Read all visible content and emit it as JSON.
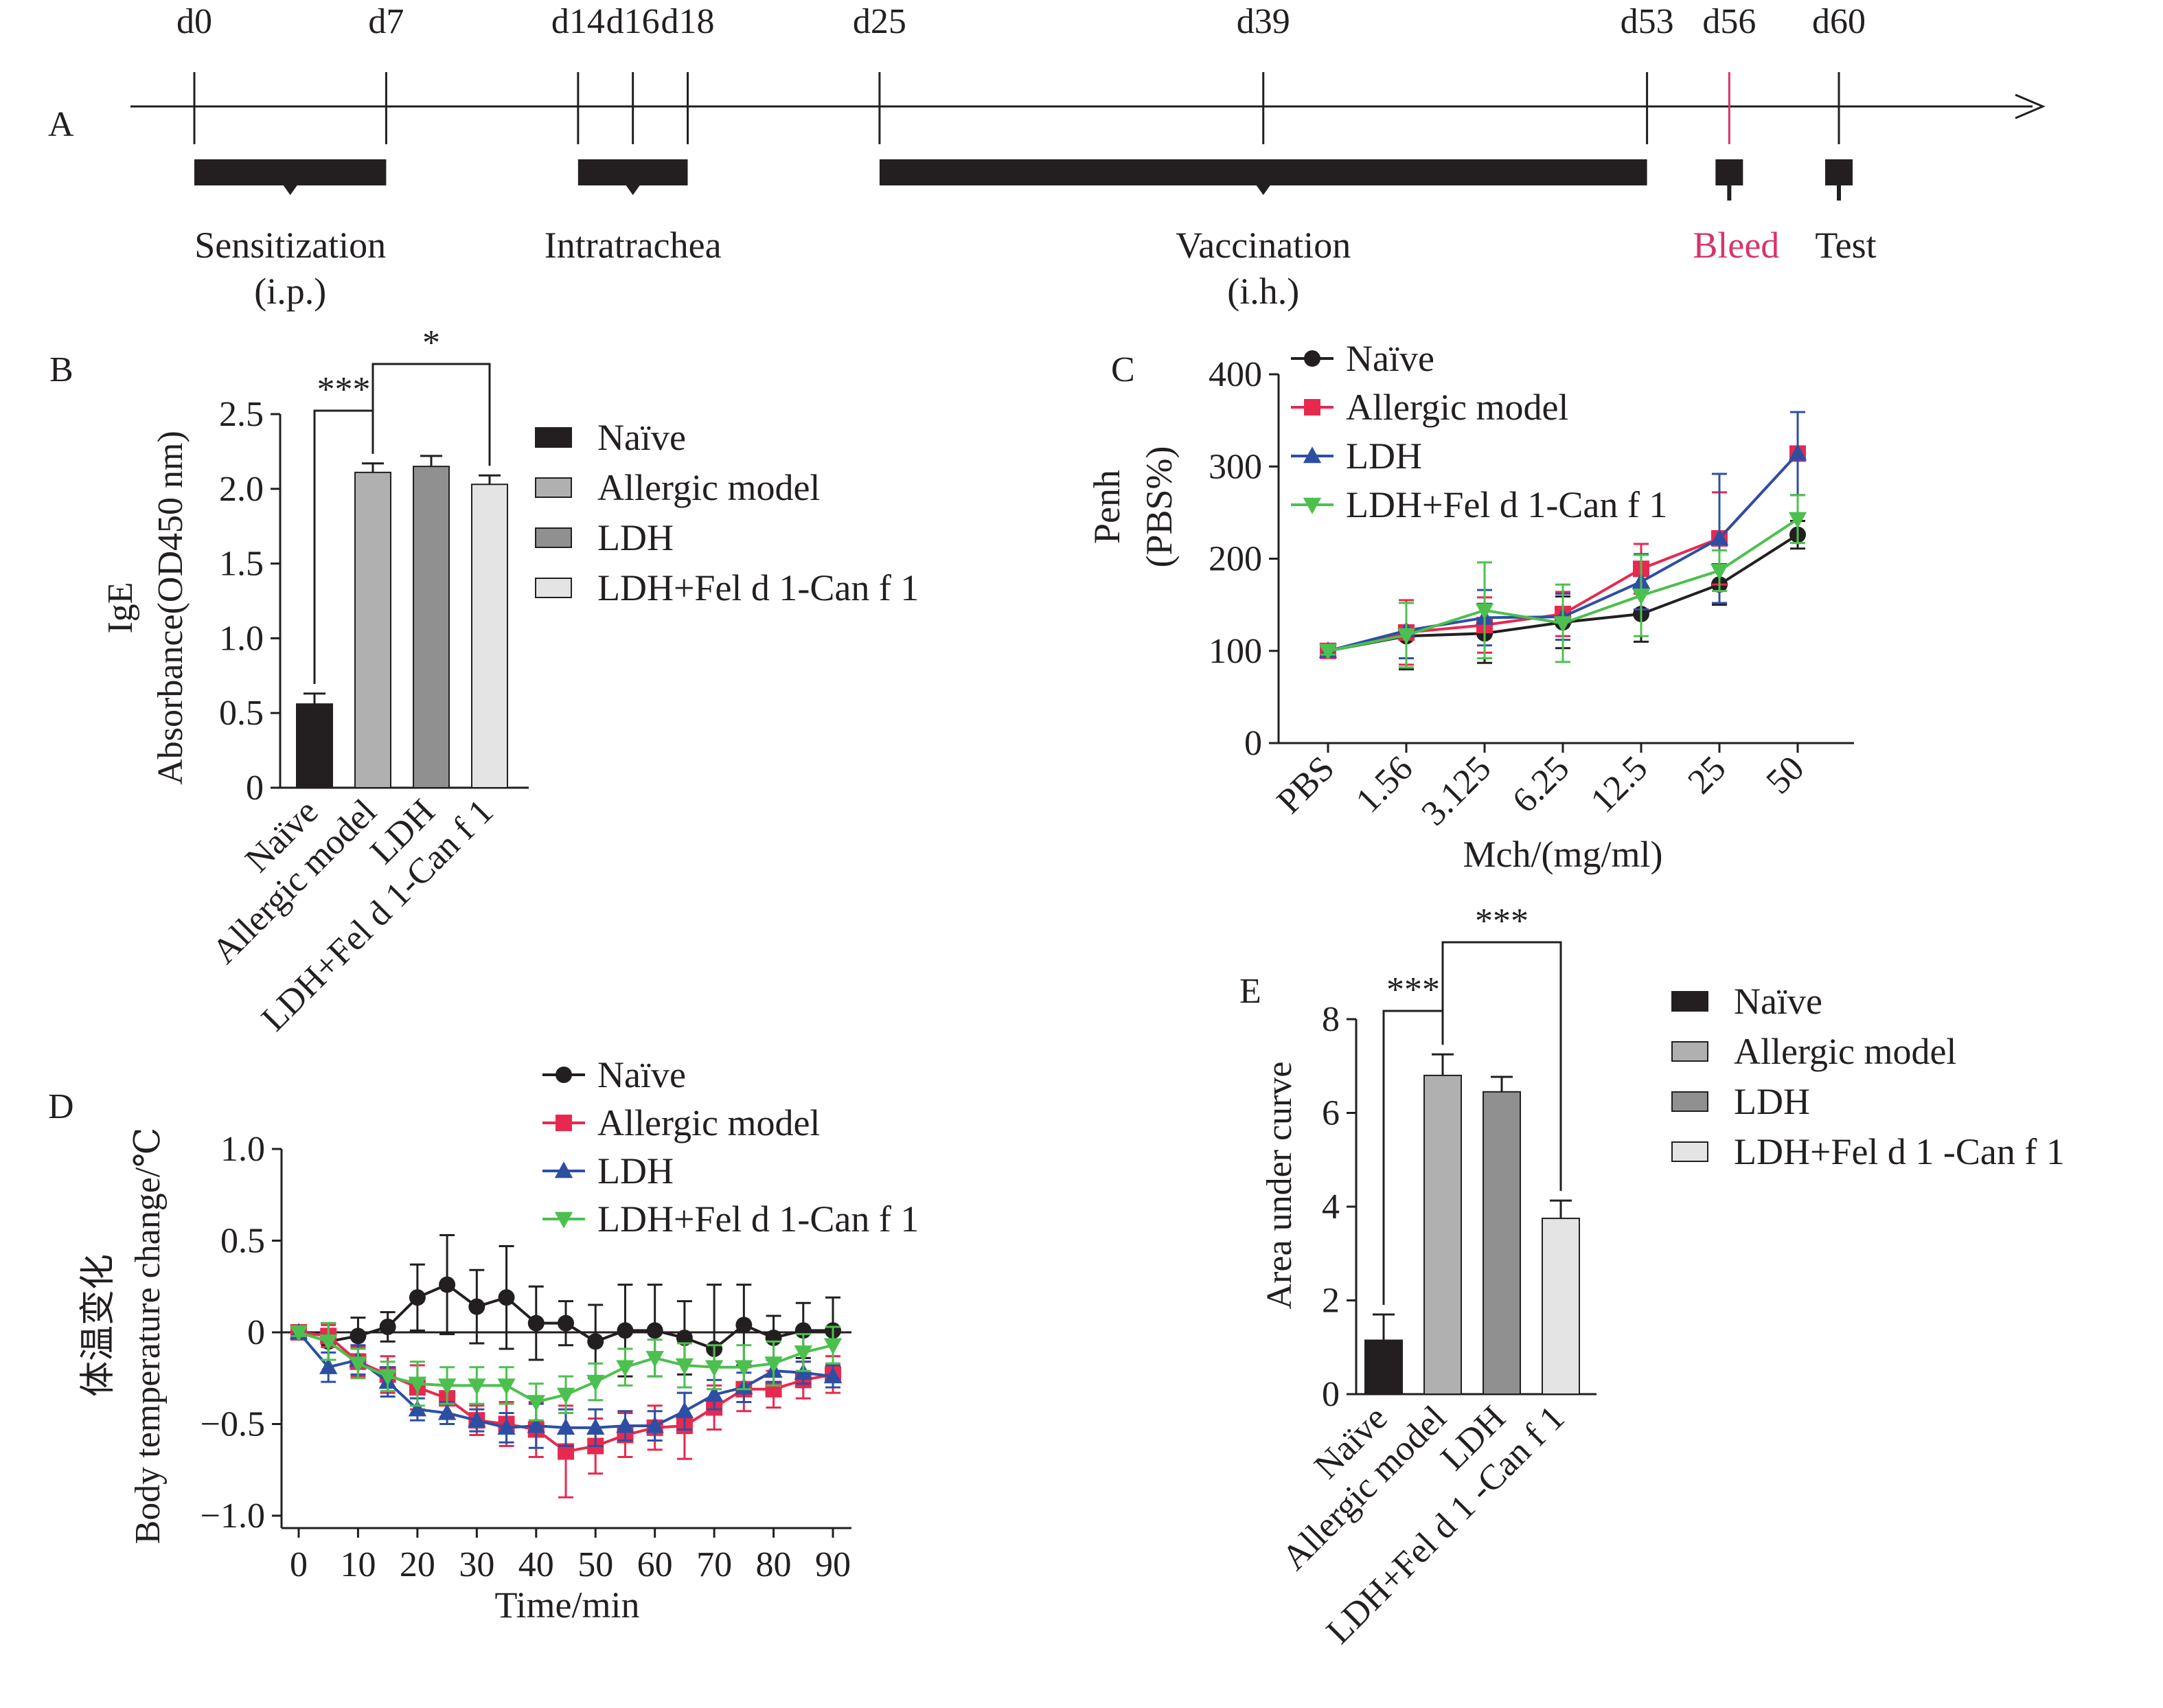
{
  "colors": {
    "ink": "#231f20",
    "naive": "#231f20",
    "allergic": "#e8294f",
    "ldh": "#2d4fa3",
    "vaccine": "#4cc04f",
    "bleed": "#d6346a",
    "bar_naive": "#231f20",
    "bar_allergic": "#b0b0b0",
    "bar_ldh": "#909090",
    "bar_vaccine": "#e4e4e4"
  },
  "panelA": {
    "label": "A",
    "days": [
      {
        "label": "d0",
        "day": 0
      },
      {
        "label": "d7",
        "day": 7
      },
      {
        "label": "d14",
        "day": 14
      },
      {
        "label": "d16",
        "day": 16
      },
      {
        "label": "d18",
        "day": 18
      },
      {
        "label": "d25",
        "day": 25
      },
      {
        "label": "d39",
        "day": 39
      },
      {
        "label": "d53",
        "day": 53
      },
      {
        "label": "d56",
        "day": 56
      },
      {
        "label": "d60",
        "day": 60
      }
    ],
    "events": [
      {
        "line1": "Sensitization",
        "line2": "(i.p.)",
        "start": 0,
        "end": 7
      },
      {
        "line1": "Intratrachea",
        "line2": "",
        "start": 14,
        "end": 18
      },
      {
        "line1": "Vaccination",
        "line2": "(i.h.)",
        "start": 25,
        "end": 53
      },
      {
        "line1": "Bleed",
        "line2": "",
        "start": 56,
        "end": 56
      },
      {
        "line1": "Test",
        "line2": "",
        "start": 60,
        "end": 60
      }
    ]
  },
  "chart_data": [
    {
      "panel": "B",
      "type": "bar",
      "ylabel_line1": "IgE",
      "ylabel_line2": "Absorbance(OD450 nm)",
      "ylim": [
        0,
        2.5
      ],
      "yticks": [
        "0",
        "0.5",
        "1.0",
        "1.5",
        "2.0",
        "2.5"
      ],
      "categories": [
        "Naïve",
        "Allergic model",
        "LDH",
        "LDH+Fel d 1-Can f 1"
      ],
      "values": [
        0.56,
        2.11,
        2.15,
        2.03
      ],
      "errors": [
        0.07,
        0.06,
        0.07,
        0.06
      ],
      "legend": [
        "Naïve",
        "Allergic model",
        "LDH",
        "LDH+Fel d 1-Can f 1"
      ],
      "significance": [
        {
          "from": 0,
          "to": 1,
          "label": "***"
        },
        {
          "from": 1,
          "to": 3,
          "label": "*"
        }
      ]
    },
    {
      "panel": "C",
      "type": "line",
      "ylabel_line1": "Penh",
      "ylabel_line2": "(PBS%)",
      "xlabel": "Mch/(mg/ml)",
      "ylim": [
        0,
        400
      ],
      "yticks": [
        "0",
        "100",
        "200",
        "300",
        "400"
      ],
      "categories": [
        "PBS",
        "1.56",
        "3.125",
        "6.25",
        "12.5",
        "25",
        "50"
      ],
      "series": [
        {
          "name": "Naïve",
          "marker": "circle",
          "values": [
            100,
            116,
            119,
            131,
            140,
            172,
            226
          ],
          "errors": [
            4,
            36,
            32,
            28,
            30,
            22,
            15
          ]
        },
        {
          "name": "Allergic model",
          "marker": "square",
          "values": [
            100,
            120,
            128,
            140,
            189,
            222,
            314
          ],
          "errors": [
            4,
            35,
            30,
            24,
            27,
            50,
            45
          ]
        },
        {
          "name": "LDH",
          "marker": "triangle-up",
          "values": [
            100,
            122,
            136,
            137,
            175,
            222,
            314
          ],
          "errors": [
            4,
            30,
            30,
            25,
            30,
            70,
            45
          ]
        },
        {
          "name": "LDH+Fel d 1-Can f 1",
          "marker": "triangle-down",
          "values": [
            100,
            117,
            144,
            130,
            160,
            187,
            243
          ],
          "errors": [
            4,
            35,
            52,
            42,
            44,
            22,
            26
          ]
        }
      ]
    },
    {
      "panel": "D",
      "type": "line",
      "ylabel_cn": "体温变化",
      "ylabel": "Body temperature change/℃",
      "xlabel": "Time/min",
      "xlim": [
        0,
        90
      ],
      "ylim": [
        -1.0,
        1.0
      ],
      "xticks": [
        "0",
        "10",
        "20",
        "30",
        "40",
        "50",
        "60",
        "70",
        "80",
        "90"
      ],
      "yticks": [
        "−1.0",
        "−0.5",
        "0",
        "0.5",
        "1.0"
      ],
      "x": [
        0,
        5,
        10,
        15,
        20,
        25,
        30,
        35,
        40,
        45,
        50,
        55,
        60,
        65,
        70,
        75,
        80,
        85,
        90
      ],
      "series": [
        {
          "name": "Naïve",
          "marker": "circle",
          "values": [
            0,
            -0.05,
            -0.02,
            0.03,
            0.19,
            0.26,
            0.14,
            0.19,
            0.05,
            0.05,
            -0.05,
            0.01,
            0.01,
            -0.03,
            -0.09,
            0.04,
            -0.03,
            0.01,
            0.01
          ],
          "errors": [
            0.02,
            0.1,
            0.1,
            0.08,
            0.18,
            0.27,
            0.2,
            0.28,
            0.2,
            0.12,
            0.2,
            0.25,
            0.25,
            0.2,
            0.35,
            0.22,
            0.12,
            0.15,
            0.18
          ]
        },
        {
          "name": "Allergic model",
          "marker": "square",
          "values": [
            0,
            -0.02,
            -0.16,
            -0.23,
            -0.3,
            -0.36,
            -0.48,
            -0.5,
            -0.53,
            -0.65,
            -0.62,
            -0.56,
            -0.52,
            -0.51,
            -0.41,
            -0.31,
            -0.31,
            -0.26,
            -0.23
          ],
          "errors": [
            0.02,
            0.06,
            0.08,
            0.1,
            0.12,
            0.1,
            0.08,
            0.12,
            0.15,
            0.25,
            0.15,
            0.12,
            0.12,
            0.18,
            0.12,
            0.12,
            0.1,
            0.1,
            0.1
          ]
        },
        {
          "name": "LDH",
          "marker": "triangle-up",
          "values": [
            0,
            -0.19,
            -0.15,
            -0.27,
            -0.42,
            -0.44,
            -0.48,
            -0.52,
            -0.51,
            -0.52,
            -0.52,
            -0.51,
            -0.51,
            -0.43,
            -0.34,
            -0.3,
            -0.21,
            -0.22,
            -0.24
          ],
          "errors": [
            0.02,
            0.08,
            0.08,
            0.08,
            0.06,
            0.06,
            0.06,
            0.08,
            0.12,
            0.1,
            0.1,
            0.08,
            0.08,
            0.1,
            0.08,
            0.08,
            0.06,
            0.06,
            0.06
          ]
        },
        {
          "name": "LDH+Fel d 1-Can f 1",
          "marker": "triangle-down",
          "values": [
            0,
            -0.05,
            -0.17,
            -0.24,
            -0.28,
            -0.29,
            -0.29,
            -0.29,
            -0.38,
            -0.34,
            -0.27,
            -0.19,
            -0.14,
            -0.18,
            -0.19,
            -0.19,
            -0.17,
            -0.11,
            -0.07
          ],
          "errors": [
            0.02,
            0.1,
            0.08,
            0.08,
            0.12,
            0.1,
            0.1,
            0.1,
            0.1,
            0.1,
            0.1,
            0.1,
            0.1,
            0.12,
            0.12,
            0.12,
            0.12,
            0.1,
            0.1
          ]
        }
      ]
    },
    {
      "panel": "E",
      "type": "bar",
      "ylabel": "Area under curve",
      "ylim": [
        0,
        8
      ],
      "yticks": [
        "0",
        "2",
        "4",
        "6",
        "8"
      ],
      "categories": [
        "Naïve",
        "Allergic model",
        "LDH",
        "LDH+Fel d 1 -Can f 1"
      ],
      "values": [
        1.15,
        6.8,
        6.45,
        3.75
      ],
      "errors": [
        0.55,
        0.45,
        0.32,
        0.38
      ],
      "legend": [
        "Naïve",
        "Allergic model",
        "LDH",
        "LDH+Fel d 1 -Can f 1"
      ],
      "significance": [
        {
          "from": 0,
          "to": 1,
          "label": "***"
        },
        {
          "from": 1,
          "to": 3,
          "label": "***"
        }
      ]
    }
  ]
}
